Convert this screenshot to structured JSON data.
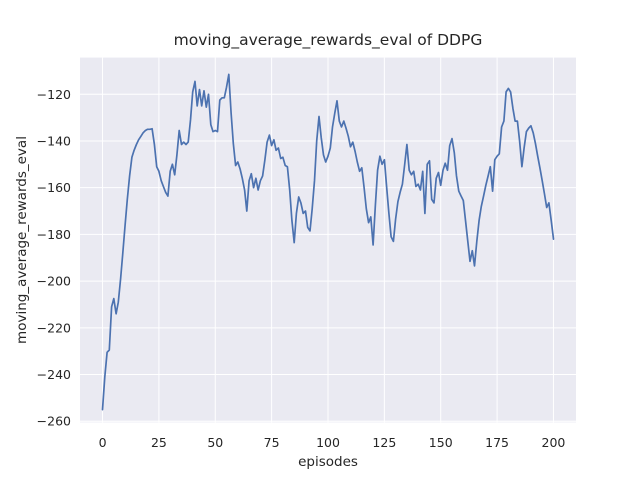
{
  "chart_data": {
    "type": "line",
    "title": "moving_average_rewards_eval of DDPG",
    "xlabel": "episodes",
    "ylabel": "moving_average_rewards_eval",
    "legend": null,
    "grid": true,
    "style": "seaborn-darkgrid",
    "plot_background": "#eaeaf2",
    "grid_color": "#ffffff",
    "line_color": "#4c72b0",
    "text_color": "#262626",
    "xlim": [
      -10,
      210
    ],
    "ylim": [
      -260.5,
      -104.3
    ],
    "x_ticks": [
      0,
      25,
      50,
      75,
      100,
      125,
      150,
      175,
      200
    ],
    "y_ticks": [
      -260,
      -240,
      -220,
      -200,
      -180,
      -160,
      -140,
      -120
    ],
    "series": [
      {
        "name": "moving_average_rewards_eval",
        "x0": 0,
        "dx": 1,
        "values": [
          -255,
          -241,
          -230.5,
          -229.5,
          -211,
          -207.5,
          -214,
          -209,
          -199,
          -188,
          -176,
          -165,
          -155,
          -147,
          -144,
          -141.5,
          -139.5,
          -138,
          -136.5,
          -135.5,
          -135,
          -135,
          -134.8,
          -141.5,
          -151,
          -153,
          -157,
          -159.5,
          -162,
          -163.6,
          -153,
          -150,
          -154.5,
          -146,
          -135.5,
          -141.5,
          -140.5,
          -141.5,
          -140.5,
          -131,
          -119,
          -114.5,
          -125,
          -118,
          -125,
          -118.5,
          -125.5,
          -120,
          -133,
          -136,
          -135.5,
          -136,
          -122.5,
          -121.5,
          -121.5,
          -117,
          -111.5,
          -128,
          -141,
          -150.5,
          -149,
          -152,
          -156,
          -161,
          -170,
          -157,
          -154,
          -160,
          -156,
          -161,
          -157,
          -155,
          -148,
          -140.5,
          -137.5,
          -142,
          -139.5,
          -144,
          -143,
          -147.5,
          -147,
          -150.5,
          -151,
          -161,
          -174,
          -183.5,
          -171,
          -164,
          -166.5,
          -171,
          -170,
          -177,
          -178.5,
          -169,
          -157,
          -140,
          -129.5,
          -138.5,
          -146,
          -149,
          -146.5,
          -143,
          -134,
          -128,
          -122.8,
          -131.5,
          -134,
          -131.5,
          -134.5,
          -138,
          -142.5,
          -140.5,
          -144.5,
          -149,
          -153,
          -151.5,
          -160,
          -169,
          -175,
          -172.5,
          -184.5,
          -168,
          -152.5,
          -146.5,
          -150,
          -148,
          -159.5,
          -171,
          -181,
          -183,
          -173.5,
          -166,
          -162,
          -158.5,
          -150,
          -141.5,
          -152.5,
          -154.5,
          -153,
          -159.5,
          -158.5,
          -161,
          -153,
          -171,
          -150,
          -148.5,
          -165,
          -166.5,
          -156,
          -153.5,
          -159,
          -152.5,
          -149.5,
          -152.5,
          -142,
          -139,
          -145,
          -155,
          -161.5,
          -163.5,
          -165.5,
          -174,
          -183,
          -191.5,
          -187,
          -193.5,
          -183,
          -174,
          -168,
          -163.5,
          -159,
          -155,
          -151,
          -161.5,
          -148,
          -146.5,
          -145.5,
          -134,
          -131.5,
          -119,
          -117.5,
          -119,
          -126,
          -131.5,
          -131.5,
          -140,
          -151,
          -143,
          -136,
          -134.5,
          -133.5,
          -136.5,
          -141,
          -146.5,
          -151.5,
          -157,
          -162.5,
          -168.5,
          -166.5,
          -174,
          -182
        ]
      }
    ]
  }
}
